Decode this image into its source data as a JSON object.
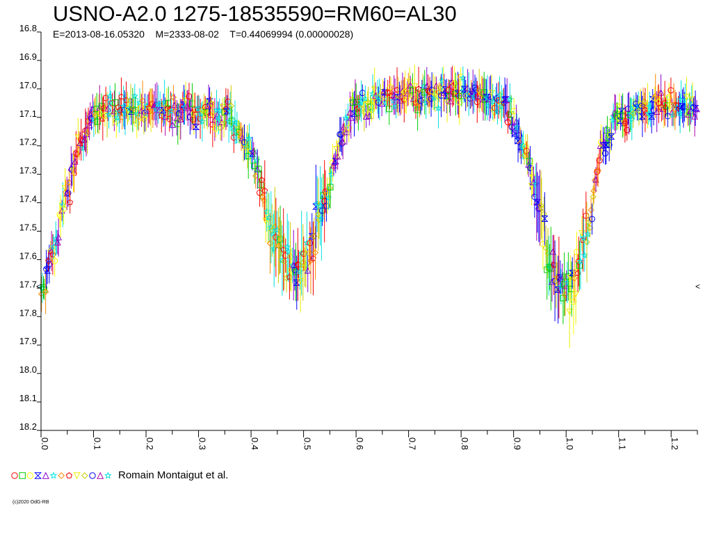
{
  "chart_data": {
    "type": "scatter",
    "title": "USNO-A2.0 1275-18535590=RM60=AL30",
    "subtitle": "E=2013-08-16.05320    M=2333-08-02    T=0.44069994 (0.00000028)",
    "xlabel": "",
    "ylabel": "",
    "xlim": [
      0.0,
      1.25
    ],
    "ylim": [
      16.8,
      18.2
    ],
    "y_inverted": true,
    "x_ticks": [
      "0.0",
      "0.1",
      "0.2",
      "0.3",
      "0.4",
      "0.5",
      "0.6",
      "0.7",
      "0.8",
      "0.9",
      "1.0",
      "1.1",
      "1.2"
    ],
    "y_ticks": [
      "16.8",
      "16.9",
      "17.0",
      "17.1",
      "17.2",
      "17.3",
      "17.4",
      "17.5",
      "17.6",
      "17.7",
      "17.8",
      "17.9",
      "18.0",
      "18.1",
      "18.2"
    ],
    "grid": false,
    "legend_position": "bottom-left",
    "legend_label": "Romain Montaigut et al.",
    "marker_note": "<",
    "light_curve_profile": {
      "phase": [
        0.0,
        0.02,
        0.05,
        0.08,
        0.1,
        0.2,
        0.3,
        0.36,
        0.4,
        0.44,
        0.47,
        0.49,
        0.51,
        0.54,
        0.57,
        0.6,
        0.7,
        0.8,
        0.88,
        0.92,
        0.95,
        0.97,
        0.99,
        1.01,
        1.04,
        1.07,
        1.1,
        1.2,
        1.25
      ],
      "magnitude": [
        17.72,
        17.58,
        17.36,
        17.18,
        17.09,
        17.06,
        17.08,
        17.1,
        17.22,
        17.48,
        17.62,
        17.64,
        17.58,
        17.4,
        17.18,
        17.06,
        17.02,
        17.01,
        17.05,
        17.2,
        17.42,
        17.62,
        17.72,
        17.7,
        17.48,
        17.2,
        17.09,
        17.06,
        17.07
      ]
    },
    "series": [
      {
        "marker": "circle",
        "color": "#ff0000"
      },
      {
        "marker": "square",
        "color": "#00cc00"
      },
      {
        "marker": "circle",
        "color": "#ffff00"
      },
      {
        "marker": "hourglass",
        "color": "#0000ff"
      },
      {
        "marker": "triangle",
        "color": "#8800cc"
      },
      {
        "marker": "star",
        "color": "#00e5e5"
      },
      {
        "marker": "diamond",
        "color": "#ff8800"
      },
      {
        "marker": "pentagon",
        "color": "#ee0000"
      },
      {
        "marker": "triangle-down",
        "color": "#eeee00"
      },
      {
        "marker": "diamond",
        "color": "#cccc00"
      },
      {
        "marker": "circle",
        "color": "#0000ee"
      },
      {
        "marker": "triangle",
        "color": "#aa00aa"
      },
      {
        "marker": "star",
        "color": "#00dddd"
      }
    ]
  },
  "copyright": "(c)2020 OdG-RB"
}
